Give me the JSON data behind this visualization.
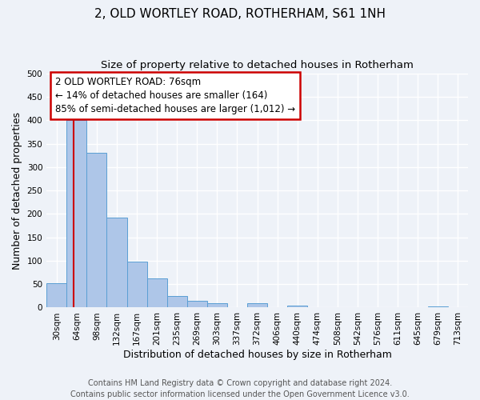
{
  "title": "2, OLD WORTLEY ROAD, ROTHERHAM, S61 1NH",
  "subtitle": "Size of property relative to detached houses in Rotherham",
  "xlabel": "Distribution of detached houses by size in Rotherham",
  "ylabel": "Number of detached properties",
  "bin_labels": [
    "30sqm",
    "64sqm",
    "98sqm",
    "132sqm",
    "167sqm",
    "201sqm",
    "235sqm",
    "269sqm",
    "303sqm",
    "337sqm",
    "372sqm",
    "406sqm",
    "440sqm",
    "474sqm",
    "508sqm",
    "542sqm",
    "576sqm",
    "611sqm",
    "645sqm",
    "679sqm",
    "713sqm"
  ],
  "bar_heights": [
    52,
    400,
    330,
    193,
    99,
    63,
    25,
    14,
    10,
    0,
    9,
    0,
    5,
    0,
    0,
    0,
    0,
    0,
    0,
    3,
    0
  ],
  "bar_color": "#aec6e8",
  "bar_edge_color": "#5a9fd4",
  "ylim": [
    0,
    500
  ],
  "yticks": [
    0,
    50,
    100,
    150,
    200,
    250,
    300,
    350,
    400,
    450,
    500
  ],
  "annotation_title": "2 OLD WORTLEY ROAD: 76sqm",
  "annotation_line1": "← 14% of detached houses are smaller (164)",
  "annotation_line2": "85% of semi-detached houses are larger (1,012) →",
  "annotation_box_color": "#ffffff",
  "annotation_box_edge_color": "#cc0000",
  "footer1": "Contains HM Land Registry data © Crown copyright and database right 2024.",
  "footer2": "Contains public sector information licensed under the Open Government Licence v3.0.",
  "bg_color": "#eef2f8",
  "grid_color": "#ffffff",
  "title_fontsize": 11,
  "subtitle_fontsize": 9.5,
  "axis_label_fontsize": 9,
  "tick_fontsize": 7.5,
  "annotation_fontsize": 8.5,
  "footer_fontsize": 7,
  "red_line_bar_index": 1,
  "red_line_color": "#cc0000"
}
